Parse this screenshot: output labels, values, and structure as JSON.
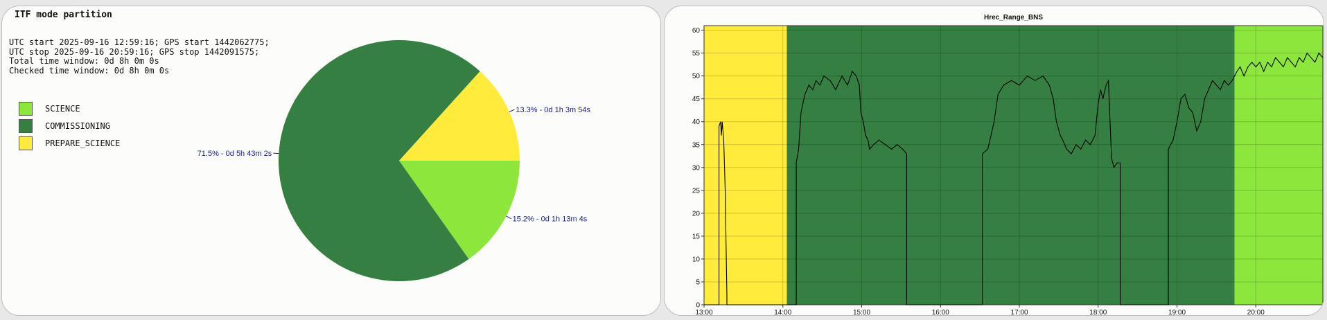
{
  "pie_panel": {
    "title": "ITF mode partition",
    "info_lines": [
      "UTC start 2025-09-16 12:59:16; GPS start 1442062775;",
      "UTC stop 2025-09-16 20:59:16; GPS stop 1442091575;",
      "Total time window: 0d 8h 0m 0s",
      "Checked time window: 0d 8h 0m 0s"
    ]
  },
  "line_panel": {
    "title": "Hrec_Range_BNS"
  },
  "colors": {
    "science": "#8ce63c",
    "commissioning": "#347f41",
    "prepare_science": "#ffeb3b",
    "label_text": "#1a1a8c"
  },
  "chart_data": [
    {
      "type": "pie",
      "title": "ITF mode partition",
      "start_angle_deg": 0,
      "slices": [
        {
          "name": "SCIENCE",
          "fraction": 0.152,
          "label": "15.2% - 0d 1h 13m 4s",
          "color": "#8ce63c"
        },
        {
          "name": "COMMISSIONING",
          "fraction": 0.715,
          "label": "71.5% - 0d 5h 43m 2s",
          "color": "#347f41"
        },
        {
          "name": "PREPARE_SCIENCE",
          "fraction": 0.133,
          "label": "13.3% - 0d 1h 3m 54s",
          "color": "#ffeb3b"
        }
      ],
      "legend": [
        "SCIENCE",
        "COMMISSIONING",
        "PREPARE_SCIENCE"
      ],
      "legend_position": "left"
    },
    {
      "type": "line",
      "title": "Hrec_Range_BNS",
      "xlim_hours": [
        13.0,
        20.85
      ],
      "ylim": [
        0,
        61
      ],
      "x_ticks": [
        13,
        14,
        15,
        16,
        17,
        18,
        19,
        20
      ],
      "x_tick_labels": [
        "13:00",
        "14:00",
        "15:00",
        "16:00",
        "17:00",
        "18:00",
        "19:00",
        "20:00"
      ],
      "y_ticks": [
        0,
        5,
        10,
        15,
        20,
        25,
        30,
        35,
        40,
        45,
        50,
        55,
        60
      ],
      "grid": true,
      "bands": [
        {
          "mode": "PREPARE_SCIENCE",
          "start": 13.0,
          "end": 14.05,
          "color": "#ffeb3b"
        },
        {
          "mode": "COMMISSIONING",
          "start": 14.05,
          "end": 19.73,
          "color": "#347f41"
        },
        {
          "mode": "SCIENCE",
          "start": 19.73,
          "end": 20.85,
          "color": "#8ce63c"
        }
      ],
      "series": [
        {
          "line_color": "#000000",
          "x": [
            13.0,
            13.19,
            13.19,
            13.21,
            13.22,
            13.23,
            13.24,
            13.25,
            13.26,
            13.27,
            13.28,
            13.29,
            13.29,
            14.17,
            14.17,
            14.2,
            14.23,
            14.28,
            14.33,
            14.38,
            14.42,
            14.47,
            14.52,
            14.6,
            14.67,
            14.75,
            14.82,
            14.88,
            14.93,
            14.97,
            14.99,
            15.02,
            15.05,
            15.08,
            15.1,
            15.15,
            15.22,
            15.3,
            15.38,
            15.45,
            15.52,
            15.57,
            15.57,
            16.53,
            16.53,
            16.6,
            16.68,
            16.73,
            16.8,
            16.9,
            17.0,
            17.1,
            17.2,
            17.3,
            17.38,
            17.43,
            17.47,
            17.52,
            17.55,
            17.6,
            17.66,
            17.72,
            17.78,
            17.84,
            17.9,
            17.96,
            18.0,
            18.03,
            18.06,
            18.1,
            18.13,
            18.15,
            18.17,
            18.2,
            18.24,
            18.28,
            18.28,
            18.89,
            18.89,
            18.95,
            19.0,
            19.05,
            19.1,
            19.15,
            19.2,
            19.25,
            19.3,
            19.35,
            19.4,
            19.45,
            19.5,
            19.55,
            19.6,
            19.65,
            19.7,
            19.73,
            19.76,
            19.8,
            19.85,
            19.9,
            19.95,
            20.0,
            20.05,
            20.1,
            20.15,
            20.2,
            20.25,
            20.3,
            20.35,
            20.4,
            20.45,
            20.5,
            20.55,
            20.6,
            20.65,
            20.7,
            20.75,
            20.8,
            20.85
          ],
          "y": [
            0,
            0,
            39,
            40,
            37,
            40,
            38,
            36,
            30,
            24,
            12,
            2,
            0,
            0,
            31,
            34,
            42,
            46,
            48,
            47,
            49,
            48,
            50,
            49,
            47,
            50,
            48,
            51,
            50,
            48,
            42,
            40,
            37,
            36,
            34,
            35,
            36,
            35,
            34,
            35,
            34,
            33,
            0,
            0,
            33,
            34,
            40,
            46,
            48,
            49,
            48,
            50,
            49,
            50,
            48,
            45,
            40,
            37,
            36,
            34,
            33,
            35,
            34,
            36,
            35,
            37,
            44,
            47,
            45,
            48,
            49,
            40,
            32,
            30,
            31,
            31,
            0,
            0,
            34,
            36,
            40,
            45,
            46,
            43,
            42,
            38,
            40,
            45,
            47,
            49,
            48,
            47,
            49,
            48,
            49,
            50,
            51,
            52,
            50,
            52,
            53,
            52,
            53,
            51,
            53,
            52,
            54,
            53,
            52,
            54,
            53,
            52,
            54,
            53,
            55,
            54,
            53,
            55,
            54
          ]
        }
      ]
    }
  ]
}
